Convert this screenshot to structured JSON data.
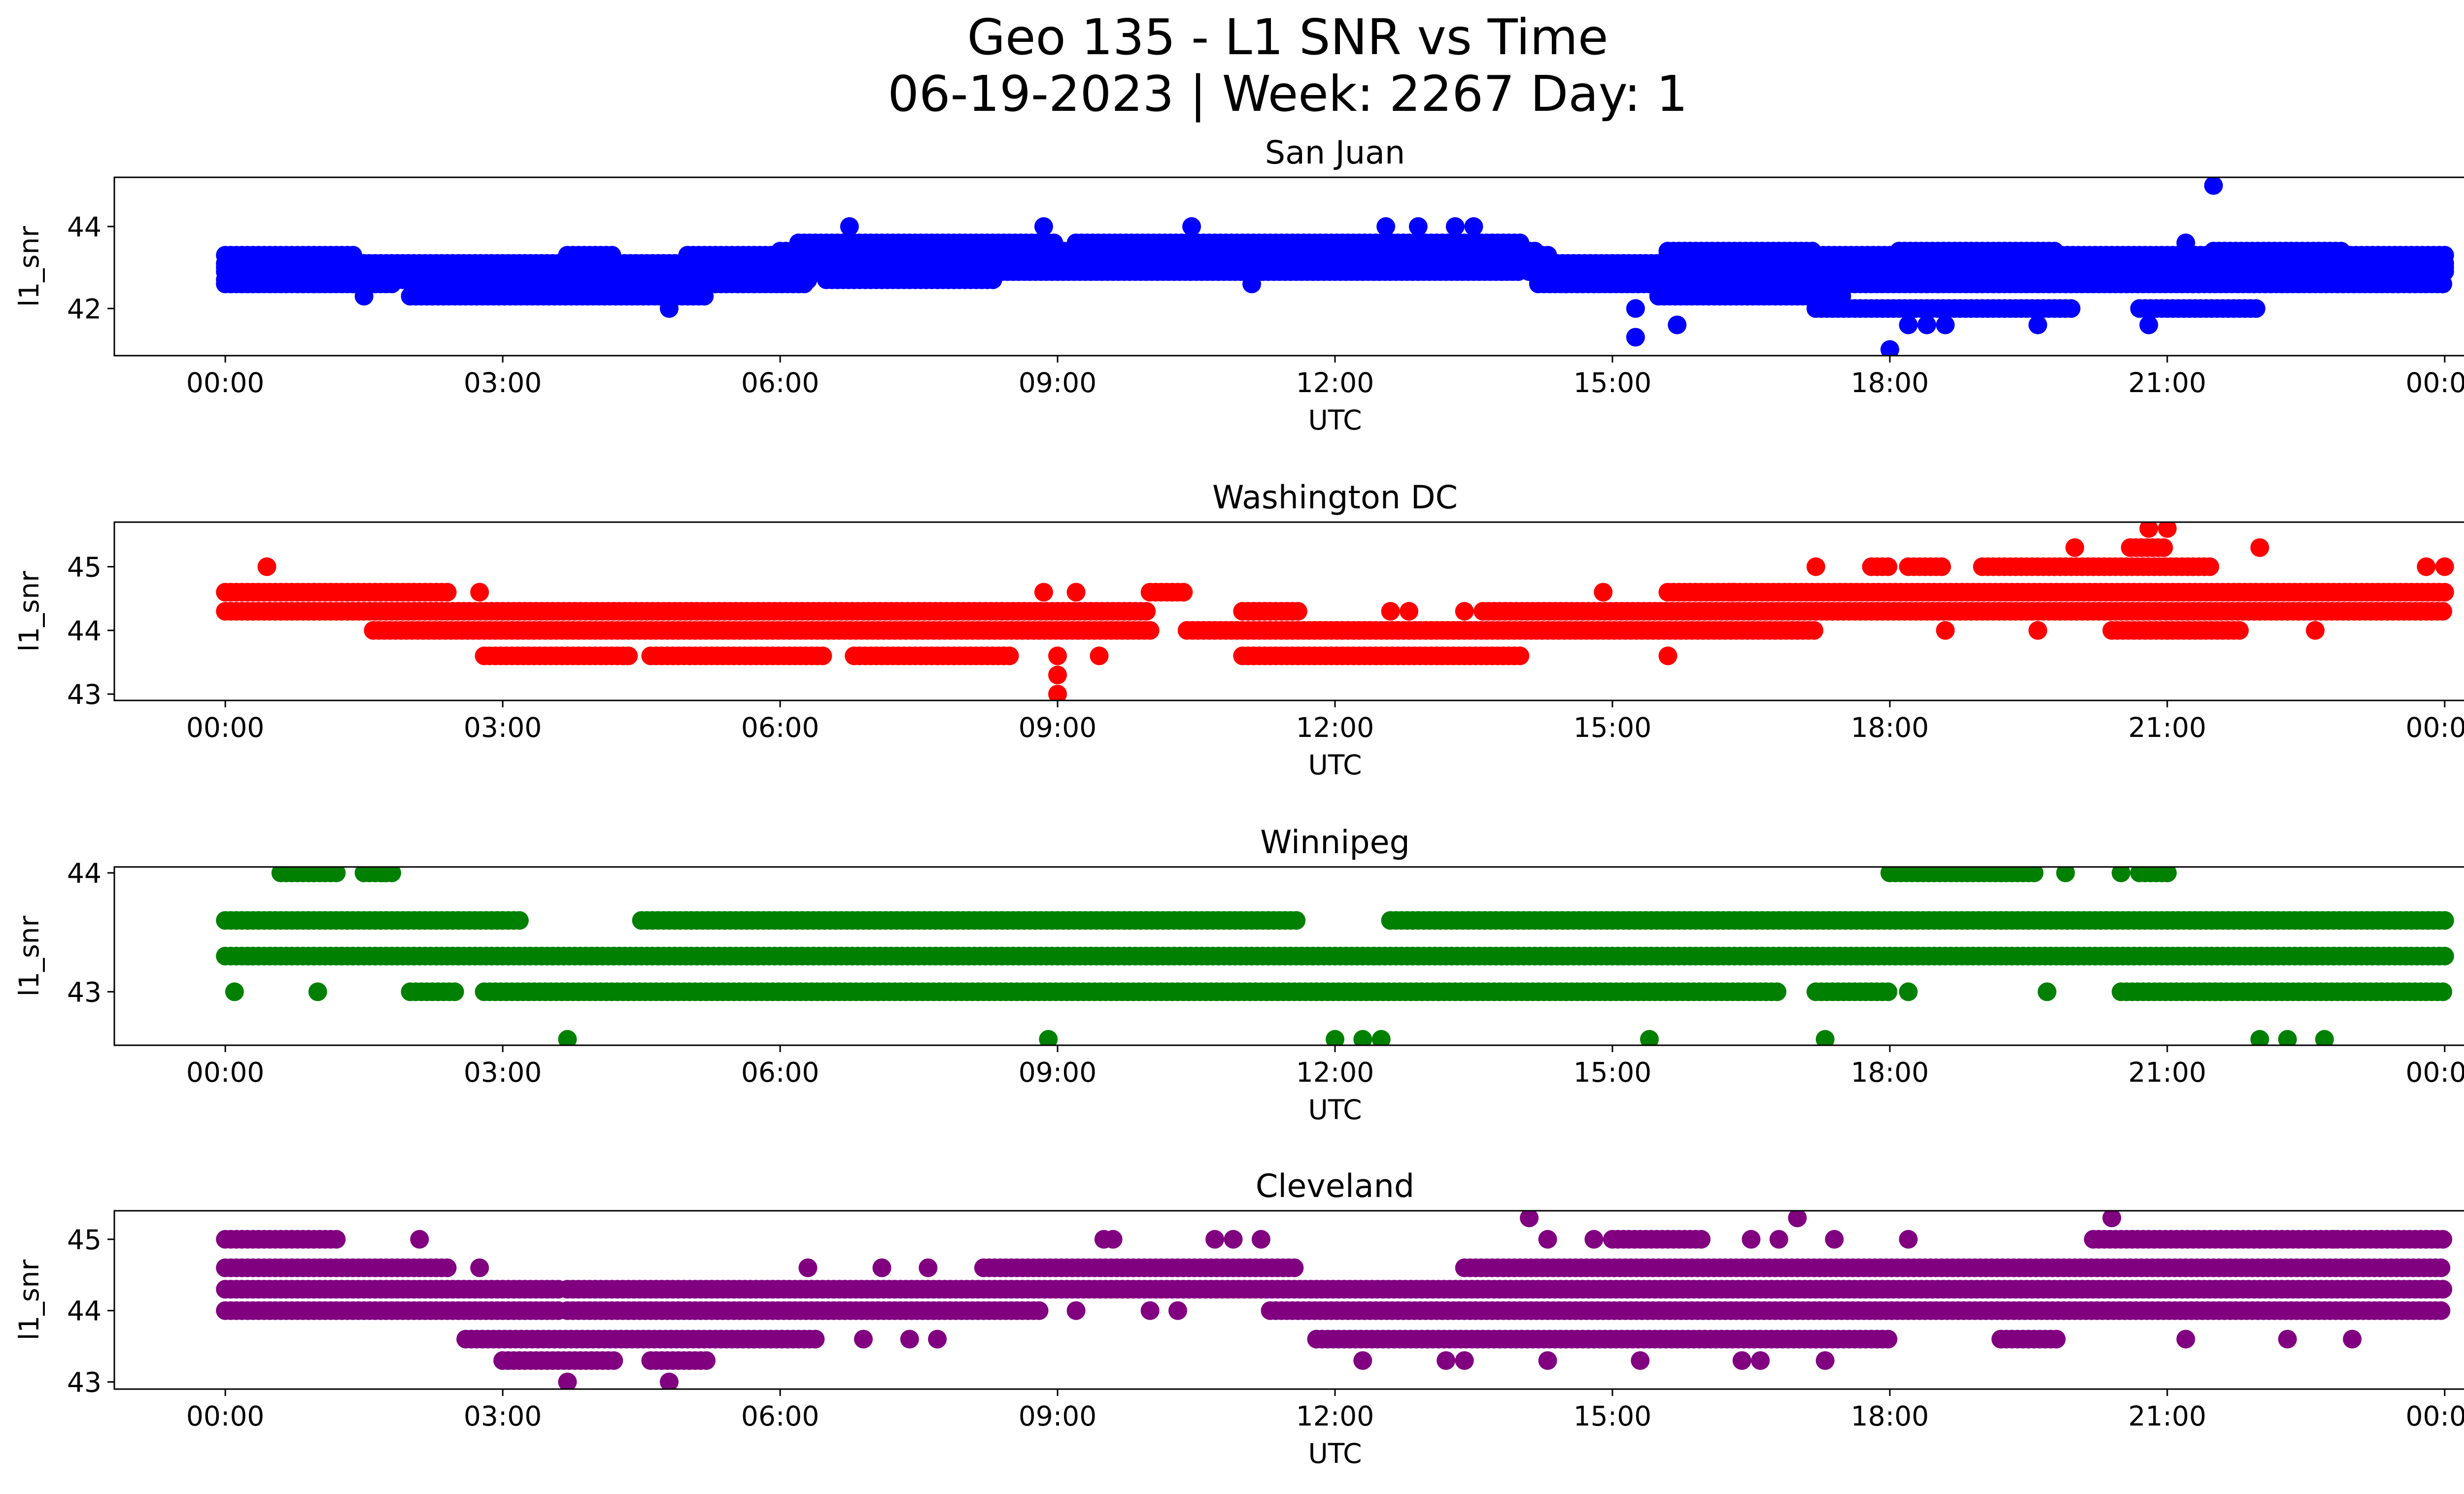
{
  "figure": {
    "title_line1": "Geo 135 - L1 SNR vs Time",
    "title_line2": "06-19-2023 | Week: 2267 Day: 1"
  },
  "chart_data": [
    {
      "type": "scatter",
      "title": "San Juan",
      "xlabel": "UTC",
      "ylabel": "l1_snr",
      "color": "#0000ff",
      "xlim_hours": [
        -1.2,
        25.2
      ],
      "ylim": [
        40.85,
        45.2
      ],
      "yticks": [
        42,
        44
      ],
      "xticks": [
        "00:00",
        "03:00",
        "06:00",
        "09:00",
        "12:00",
        "15:00",
        "18:00",
        "21:00",
        "00:00"
      ],
      "grid": false,
      "bands": [
        {
          "y": 42.6,
          "segments": [
            [
              0.0,
              1.8
            ],
            [
              3.0,
              4.2
            ],
            [
              5.0,
              6.3
            ],
            [
              14.2,
              24.0
            ]
          ]
        },
        {
          "y": 42.7,
          "segments": [
            [
              0.0,
              6.3
            ],
            [
              6.5,
              8.3
            ],
            [
              14.2,
              15.4
            ],
            [
              17.0,
              24.0
            ]
          ]
        },
        {
          "y": 42.9,
          "segments": [
            [
              0.0,
              14.0
            ],
            [
              14.1,
              24.0
            ]
          ]
        },
        {
          "y": 43.0,
          "segments": [
            [
              0.0,
              24.0
            ]
          ]
        },
        {
          "y": 43.1,
          "segments": [
            [
              0.0,
              24.0
            ]
          ]
        },
        {
          "y": 43.3,
          "segments": [
            [
              0.0,
              1.4
            ],
            [
              3.7,
              4.2
            ],
            [
              5.0,
              14.3
            ],
            [
              15.6,
              24.0
            ]
          ]
        },
        {
          "y": 43.4,
          "segments": [
            [
              6.0,
              14.2
            ],
            [
              15.6,
              17.2
            ],
            [
              18.1,
              19.8
            ],
            [
              21.5,
              22.9
            ]
          ]
        },
        {
          "y": 43.6,
          "segments": [
            [
              6.2,
              9.0
            ],
            [
              9.2,
              14.0
            ]
          ]
        },
        {
          "y": 42.3,
          "segments": [
            [
              2.0,
              5.2
            ],
            [
              15.5,
              17.5
            ]
          ]
        },
        {
          "y": 42.0,
          "segments": [
            [
              17.2,
              20.0
            ],
            [
              20.7,
              22.0
            ]
          ]
        }
      ],
      "points": [
        [
          6.75,
          44.0
        ],
        [
          8.85,
          44.0
        ],
        [
          10.45,
          44.0
        ],
        [
          12.55,
          44.0
        ],
        [
          12.9,
          44.0
        ],
        [
          13.3,
          44.0
        ],
        [
          13.5,
          44.0
        ],
        [
          21.5,
          45.0
        ],
        [
          21.2,
          43.6
        ],
        [
          15.25,
          42.0
        ],
        [
          15.25,
          41.3
        ],
        [
          15.7,
          41.6
        ],
        [
          18.0,
          41.0
        ],
        [
          18.2,
          41.6
        ],
        [
          18.4,
          41.6
        ],
        [
          18.6,
          41.6
        ],
        [
          19.6,
          41.6
        ],
        [
          20.8,
          41.6
        ],
        [
          4.8,
          42.0
        ],
        [
          1.5,
          42.3
        ],
        [
          11.1,
          42.6
        ],
        [
          12.7,
          43.0
        ],
        [
          13.4,
          43.0
        ],
        [
          9.7,
          43.0
        ]
      ]
    },
    {
      "type": "scatter",
      "title": "Washington DC",
      "xlabel": "UTC",
      "ylabel": "l1_snr",
      "color": "#ff0000",
      "xlim_hours": [
        -1.2,
        25.2
      ],
      "ylim": [
        42.9,
        45.7
      ],
      "yticks": [
        43,
        44,
        45
      ],
      "xticks": [
        "00:00",
        "03:00",
        "06:00",
        "09:00",
        "12:00",
        "15:00",
        "18:00",
        "21:00",
        "00:00"
      ],
      "grid": false,
      "bands": [
        {
          "y": 44.6,
          "segments": [
            [
              0.0,
              2.4
            ],
            [
              10.0,
              10.4
            ],
            [
              15.6,
              24.0
            ]
          ]
        },
        {
          "y": 44.3,
          "segments": [
            [
              0.0,
              10.0
            ],
            [
              11.0,
              11.6
            ],
            [
              13.6,
              24.0
            ]
          ]
        },
        {
          "y": 44.0,
          "segments": [
            [
              1.6,
              10.0
            ],
            [
              10.4,
              17.2
            ],
            [
              20.4,
              21.8
            ]
          ]
        },
        {
          "y": 43.6,
          "segments": [
            [
              2.8,
              4.4
            ],
            [
              4.6,
              6.5
            ],
            [
              6.8,
              8.5
            ],
            [
              11.0,
              14.0
            ]
          ]
        },
        {
          "y": 45.0,
          "segments": [
            [
              19.0,
              21.5
            ],
            [
              18.2,
              18.6
            ],
            [
              17.8,
              18.0
            ]
          ]
        },
        {
          "y": 45.3,
          "segments": [
            [
              20.6,
              21.0
            ]
          ]
        }
      ],
      "points": [
        [
          0.45,
          45.0
        ],
        [
          2.75,
          44.6
        ],
        [
          8.85,
          44.6
        ],
        [
          9.0,
          43.6
        ],
        [
          9.0,
          43.3
        ],
        [
          9.0,
          43.0
        ],
        [
          9.2,
          44.6
        ],
        [
          9.45,
          43.6
        ],
        [
          12.6,
          44.3
        ],
        [
          12.8,
          44.3
        ],
        [
          13.4,
          44.3
        ],
        [
          15.6,
          43.6
        ],
        [
          14.9,
          44.6
        ],
        [
          16.3,
          44.6
        ],
        [
          17.2,
          45.0
        ],
        [
          19.6,
          44.0
        ],
        [
          20.0,
          45.3
        ],
        [
          20.8,
          45.6
        ],
        [
          21.0,
          45.6
        ],
        [
          22.0,
          45.3
        ],
        [
          22.6,
          44.0
        ],
        [
          23.8,
          45.0
        ],
        [
          24.0,
          45.0
        ],
        [
          21.0,
          44.0
        ],
        [
          18.6,
          44.0
        ]
      ]
    },
    {
      "type": "scatter",
      "title": "Winnipeg",
      "xlabel": "UTC",
      "ylabel": "l1_snr",
      "color": "#008000",
      "xlim_hours": [
        -1.2,
        25.2
      ],
      "ylim": [
        42.55,
        44.05
      ],
      "yticks": [
        43,
        44
      ],
      "xticks": [
        "00:00",
        "03:00",
        "06:00",
        "09:00",
        "12:00",
        "15:00",
        "18:00",
        "21:00",
        "00:00"
      ],
      "grid": false,
      "bands": [
        {
          "y": 43.6,
          "segments": [
            [
              0.0,
              3.2
            ],
            [
              4.5,
              11.6
            ],
            [
              12.6,
              24.0
            ]
          ]
        },
        {
          "y": 43.3,
          "segments": [
            [
              0.0,
              24.0
            ]
          ]
        },
        {
          "y": 43.0,
          "segments": [
            [
              2.0,
              2.5
            ],
            [
              2.8,
              16.8
            ],
            [
              17.2,
              18.0
            ],
            [
              20.5,
              21.6
            ],
            [
              21.4,
              24.0
            ]
          ]
        },
        {
          "y": 44.0,
          "segments": [
            [
              0.6,
              1.2
            ],
            [
              1.5,
              1.8
            ],
            [
              18.0,
              19.6
            ],
            [
              20.7,
              21.0
            ]
          ]
        }
      ],
      "points": [
        [
          0.1,
          43.0
        ],
        [
          1.0,
          43.0
        ],
        [
          1.7,
          44.0
        ],
        [
          3.7,
          42.6
        ],
        [
          8.9,
          42.6
        ],
        [
          12.3,
          42.6
        ],
        [
          12.5,
          42.6
        ],
        [
          12.0,
          42.6
        ],
        [
          15.4,
          42.6
        ],
        [
          17.3,
          42.6
        ],
        [
          19.7,
          43.0
        ],
        [
          20.5,
          44.0
        ],
        [
          21.0,
          44.0
        ],
        [
          22.0,
          42.6
        ],
        [
          22.3,
          42.6
        ],
        [
          22.7,
          42.6
        ],
        [
          19.9,
          44.0
        ],
        [
          18.2,
          43.0
        ]
      ]
    },
    {
      "type": "scatter",
      "title": "Cleveland",
      "xlabel": "UTC",
      "ylabel": "l1_snr",
      "color": "#800080",
      "xlim_hours": [
        -1.2,
        25.2
      ],
      "ylim": [
        42.9,
        45.4
      ],
      "yticks": [
        43,
        44,
        45
      ],
      "xticks": [
        "00:00",
        "03:00",
        "06:00",
        "09:00",
        "12:00",
        "15:00",
        "18:00",
        "21:00",
        "00:00"
      ],
      "grid": false,
      "bands": [
        {
          "y": 45.0,
          "segments": [
            [
              0.0,
              1.2
            ],
            [
              20.2,
              22.0
            ],
            [
              22.0,
              24.0
            ]
          ]
        },
        {
          "y": 44.6,
          "segments": [
            [
              0.0,
              2.4
            ],
            [
              8.2,
              11.6
            ],
            [
              13.4,
              24.0
            ]
          ]
        },
        {
          "y": 44.3,
          "segments": [
            [
              0.0,
              3.6
            ],
            [
              3.7,
              24.0
            ]
          ]
        },
        {
          "y": 44.0,
          "segments": [
            [
              0.0,
              3.6
            ],
            [
              3.7,
              8.8
            ],
            [
              11.3,
              24.0
            ]
          ]
        },
        {
          "y": 43.6,
          "segments": [
            [
              2.6,
              6.4
            ],
            [
              11.8,
              13.0
            ],
            [
              13.0,
              18.0
            ],
            [
              19.2,
              19.8
            ]
          ]
        },
        {
          "y": 43.3,
          "segments": [
            [
              3.0,
              4.2
            ],
            [
              4.6,
              5.2
            ]
          ]
        },
        {
          "y": 45.0,
          "segments": [
            [
              15.0,
              16.0
            ]
          ]
        }
      ],
      "points": [
        [
          2.1,
          45.0
        ],
        [
          2.75,
          44.6
        ],
        [
          3.7,
          43.0
        ],
        [
          4.8,
          43.0
        ],
        [
          9.5,
          45.0
        ],
        [
          9.6,
          45.0
        ],
        [
          10.7,
          45.0
        ],
        [
          10.9,
          45.0
        ],
        [
          11.2,
          45.0
        ],
        [
          14.1,
          45.3
        ],
        [
          14.3,
          45.0
        ],
        [
          14.8,
          45.0
        ],
        [
          16.5,
          45.0
        ],
        [
          16.8,
          45.0
        ],
        [
          17.0,
          45.3
        ],
        [
          17.4,
          45.0
        ],
        [
          18.2,
          45.0
        ],
        [
          20.4,
          45.3
        ],
        [
          12.3,
          43.3
        ],
        [
          13.2,
          43.3
        ],
        [
          13.4,
          43.3
        ],
        [
          14.3,
          43.3
        ],
        [
          15.3,
          43.3
        ],
        [
          16.4,
          43.3
        ],
        [
          16.6,
          43.3
        ],
        [
          17.3,
          43.3
        ],
        [
          21.2,
          43.6
        ],
        [
          22.3,
          43.6
        ],
        [
          23.0,
          43.6
        ],
        [
          22.8,
          45.0
        ],
        [
          23.5,
          45.0
        ],
        [
          23.8,
          45.0
        ],
        [
          6.9,
          43.6
        ],
        [
          7.4,
          43.6
        ],
        [
          7.7,
          43.6
        ],
        [
          9.2,
          44.0
        ],
        [
          10.0,
          44.0
        ],
        [
          10.3,
          44.0
        ],
        [
          6.3,
          44.6
        ],
        [
          7.1,
          44.6
        ],
        [
          7.6,
          44.6
        ]
      ]
    }
  ]
}
